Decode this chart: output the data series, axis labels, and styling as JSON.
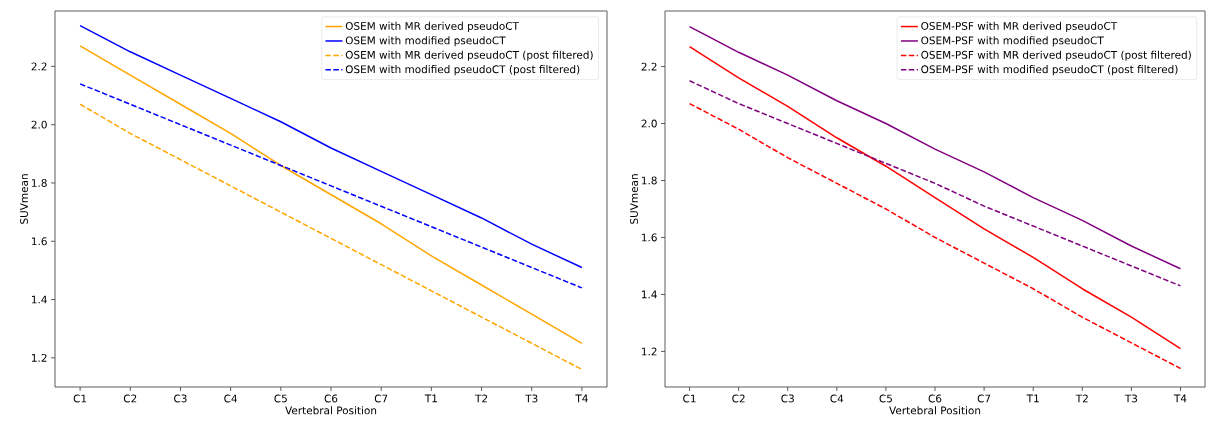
{
  "chart_data": [
    {
      "type": "line",
      "xlabel": "Vertebral Position",
      "ylabel": "SUVmean",
      "categories": [
        "C1",
        "C2",
        "C3",
        "C4",
        "C5",
        "C6",
        "C7",
        "T1",
        "T2",
        "T3",
        "T4"
      ],
      "ylim": [
        1.1,
        2.39
      ],
      "yticks": [
        1.2,
        1.4,
        1.6,
        1.8,
        {
          "value": 2,
          "label": "2.0"
        },
        2.2
      ],
      "legend": "top right",
      "series": [
        {
          "name": "OSEM with MR derived pseudoCT",
          "color": "#ffa500",
          "line_style": "solid",
          "values": [
            2.27,
            2.17,
            2.07,
            1.97,
            1.86,
            1.76,
            1.66,
            1.55,
            1.45,
            1.35,
            1.25
          ]
        },
        {
          "name": "OSEM with modified pseudoCT",
          "color": "#0000ff",
          "line_style": "solid",
          "values": [
            2.34,
            2.25,
            2.17,
            2.09,
            2.01,
            1.92,
            1.84,
            1.76,
            1.68,
            1.59,
            1.51
          ]
        },
        {
          "name": "OSEM with MR derived pseudoCT (post filtered)",
          "color": "#ffa500",
          "line_style": "dashed",
          "values": [
            2.07,
            1.97,
            1.88,
            1.79,
            1.7,
            1.61,
            1.52,
            1.43,
            1.34,
            1.25,
            1.16
          ]
        },
        {
          "name": "OSEM with modified pseudoCT (post filtered)",
          "color": "#0000ff",
          "line_style": "dashed",
          "values": [
            2.14,
            2.07,
            2.0,
            1.93,
            1.86,
            1.79,
            1.72,
            1.65,
            1.58,
            1.51,
            1.44
          ]
        }
      ]
    },
    {
      "type": "line",
      "xlabel": "Vertebral Position",
      "ylabel": "SUVmean",
      "categories": [
        "C1",
        "C2",
        "C3",
        "C4",
        "C5",
        "C6",
        "C7",
        "T1",
        "T2",
        "T3",
        "T4"
      ],
      "ylim": [
        1.075,
        2.395
      ],
      "yticks": [
        1.2,
        1.4,
        1.6,
        1.8,
        {
          "value": 2,
          "label": "2.0"
        },
        2.2
      ],
      "legend": "top right",
      "series": [
        {
          "name": "OSEM-PSF with MR derived pseudoCT",
          "color": "#ff0000",
          "line_style": "solid",
          "values": [
            2.27,
            2.16,
            2.06,
            1.95,
            1.85,
            1.74,
            1.63,
            1.53,
            1.42,
            1.32,
            1.21
          ]
        },
        {
          "name": "OSEM-PSF with modified pseudoCT",
          "color": "#800080",
          "line_style": "solid",
          "values": [
            2.34,
            2.25,
            2.17,
            2.08,
            2.0,
            1.91,
            1.83,
            1.74,
            1.66,
            1.57,
            1.49
          ]
        },
        {
          "name": "OSEM-PSF with MR derived pseudoCT (post filtered)",
          "color": "#ff0000",
          "line_style": "dashed",
          "values": [
            2.07,
            1.98,
            1.88,
            1.79,
            1.7,
            1.6,
            1.51,
            1.42,
            1.32,
            1.23,
            1.14
          ]
        },
        {
          "name": "OSEM-PSF with modified pseudoCT (post filtered)",
          "color": "#800080",
          "line_style": "dashed",
          "values": [
            2.15,
            2.07,
            2.0,
            1.93,
            1.86,
            1.79,
            1.71,
            1.64,
            1.57,
            1.5,
            1.43
          ]
        }
      ]
    }
  ]
}
